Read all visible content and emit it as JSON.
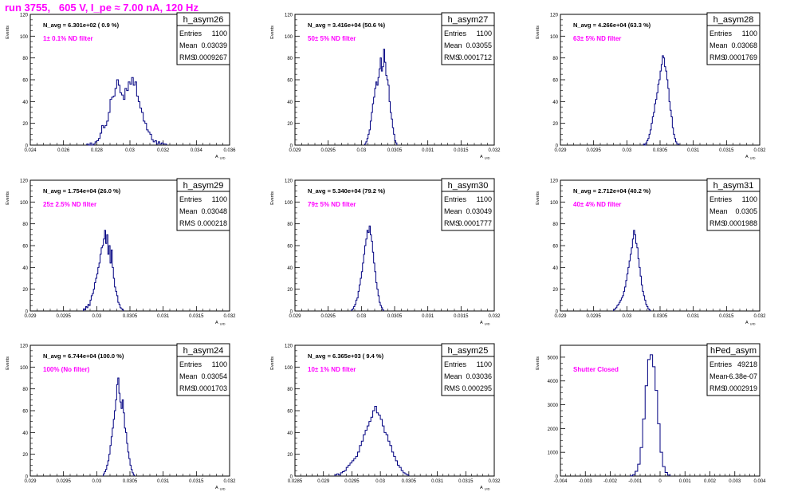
{
  "page": {
    "title": "run 3755,   605 V, I_pe ≈ 7.00 nA, 120 Hz"
  },
  "colors": {
    "title": "#ff00ff",
    "histogram": "#000080",
    "annotation": "#ff00ff",
    "frame": "#000000"
  },
  "chart_data": [
    {
      "type": "histogram",
      "name": "h_asym26",
      "stats": {
        "Entries": "1100",
        "Mean": "0.03039",
        "RMS": "0.0009267"
      },
      "navg_label": "N_avg = 6.301e+02 ( 0.9 %)",
      "filter_label": "1± 0.1% ND filter",
      "ylabel": "Events",
      "xlabel": "A_UID",
      "xlim": [
        0.024,
        0.036
      ],
      "ylim": [
        0,
        120
      ],
      "xticks": [
        0.024,
        0.026,
        0.028,
        0.03,
        0.032,
        0.034,
        0.036
      ],
      "xtick_labels": [
        "0.024",
        "0.026",
        "0.028",
        "0.03",
        "0.032",
        "0.034",
        "0.036"
      ],
      "yticks": [
        0,
        20,
        40,
        60,
        80,
        100,
        120
      ],
      "ytick_labels": [
        "0",
        "20",
        "40",
        "60",
        "80",
        "100",
        "120"
      ],
      "hist": {
        "edges_start": 0.0274,
        "bin_width": 0.0001,
        "counts": [
          1,
          0,
          2,
          0,
          1,
          3,
          4,
          6,
          11,
          18,
          16,
          18,
          22,
          30,
          42,
          44,
          45,
          52,
          60,
          55,
          48,
          46,
          42,
          52,
          50,
          58,
          56,
          62,
          55,
          58,
          45,
          40,
          34,
          30,
          22,
          20,
          14,
          12,
          10,
          5,
          3,
          4,
          1,
          3,
          1,
          2,
          1,
          1
        ]
      }
    },
    {
      "type": "histogram",
      "name": "h_asym27",
      "stats": {
        "Entries": "1100",
        "Mean": "0.03055",
        "RMS": "0.0001712"
      },
      "navg_label": "N_avg = 3.416e+04 (50.6 %)",
      "filter_label": "50± 5% ND filter",
      "ylabel": "Events",
      "xlabel": "A_UID",
      "xlim": [
        0.029,
        0.032
      ],
      "ylim": [
        0,
        120
      ],
      "xticks": [
        0.029,
        0.0295,
        0.03,
        0.0305,
        0.031,
        0.0315,
        0.032
      ],
      "xtick_labels": [
        "0.029",
        "0.0295",
        "0.03",
        "0.0305",
        "0.031",
        "0.0315",
        "0.032"
      ],
      "yticks": [
        0,
        20,
        40,
        60,
        80,
        100,
        120
      ],
      "ytick_labels": [
        "0",
        "20",
        "40",
        "60",
        "80",
        "100",
        "120"
      ],
      "hist": {
        "edges_start": 0.03005,
        "bin_width": 1.67e-05,
        "counts": [
          1,
          3,
          6,
          10,
          14,
          22,
          30,
          38,
          44,
          52,
          58,
          55,
          62,
          70,
          80,
          68,
          72,
          88,
          76,
          64,
          60,
          55,
          40,
          30,
          24,
          16,
          10,
          4,
          2
        ]
      }
    },
    {
      "type": "histogram",
      "name": "h_asym28",
      "stats": {
        "Entries": "1100",
        "Mean": "0.03068",
        "RMS": "0.0001769"
      },
      "navg_label": "N_avg = 4.266e+04 (63.3 %)",
      "filter_label": "63± 5% ND filter",
      "ylabel": "Events",
      "xlabel": "A_UID",
      "xlim": [
        0.029,
        0.032
      ],
      "ylim": [
        0,
        120
      ],
      "xticks": [
        0.029,
        0.0295,
        0.03,
        0.0305,
        0.031,
        0.0315,
        0.032
      ],
      "xtick_labels": [
        "0.029",
        "0.0295",
        "0.03",
        "0.0305",
        "0.031",
        "0.0315",
        "0.032"
      ],
      "yticks": [
        0,
        20,
        40,
        60,
        80,
        100,
        120
      ],
      "ytick_labels": [
        "0",
        "20",
        "40",
        "60",
        "80",
        "100",
        "120"
      ],
      "hist": {
        "edges_start": 0.03025,
        "bin_width": 1.67e-05,
        "counts": [
          1,
          0,
          2,
          4,
          6,
          10,
          14,
          20,
          26,
          30,
          38,
          42,
          48,
          56,
          60,
          68,
          74,
          82,
          80,
          72,
          68,
          60,
          52,
          40,
          32,
          26,
          16,
          10,
          6,
          3,
          1,
          1
        ]
      }
    },
    {
      "type": "histogram",
      "name": "h_asym29",
      "stats": {
        "Entries": "1100",
        "Mean": "0.03048",
        "RMS": "0.000218"
      },
      "navg_label": "N_avg = 1.754e+04 (26.0 %)",
      "filter_label": "25± 2.5% ND filter",
      "ylabel": "Events",
      "xlabel": "A_UID",
      "xlim": [
        0.029,
        0.032
      ],
      "ylim": [
        0,
        120
      ],
      "xticks": [
        0.029,
        0.0295,
        0.03,
        0.0305,
        0.031,
        0.0315,
        0.032
      ],
      "xtick_labels": [
        "0.029",
        "0.0295",
        "0.03",
        "0.0305",
        "0.031",
        "0.0315",
        "0.032"
      ],
      "yticks": [
        0,
        20,
        40,
        60,
        80,
        100,
        120
      ],
      "ytick_labels": [
        "0",
        "20",
        "40",
        "60",
        "80",
        "100",
        "120"
      ],
      "hist": {
        "edges_start": 0.0298,
        "bin_width": 1.67e-05,
        "counts": [
          2,
          1,
          4,
          3,
          6,
          5,
          10,
          14,
          16,
          20,
          26,
          30,
          34,
          40,
          44,
          52,
          58,
          60,
          66,
          74,
          62,
          70,
          52,
          60,
          44,
          56,
          40,
          30,
          22,
          18,
          14,
          8,
          6,
          3,
          2,
          1
        ]
      }
    },
    {
      "type": "histogram",
      "name": "h_asym30",
      "stats": {
        "Entries": "1100",
        "Mean": "0.03049",
        "RMS": "0.0001777"
      },
      "navg_label": "N_avg = 5.340e+04 (79.2 %)",
      "filter_label": "79± 5% ND filter",
      "ylabel": "Events",
      "xlabel": "A_UID",
      "xlim": [
        0.029,
        0.032
      ],
      "ylim": [
        0,
        120
      ],
      "xticks": [
        0.029,
        0.0295,
        0.03,
        0.0305,
        0.031,
        0.0315,
        0.032
      ],
      "xtick_labels": [
        "0.029",
        "0.0295",
        "0.03",
        "0.0305",
        "0.031",
        "0.0315",
        "0.032"
      ],
      "yticks": [
        0,
        20,
        40,
        60,
        80,
        100,
        120
      ],
      "ytick_labels": [
        "0",
        "20",
        "40",
        "60",
        "80",
        "100",
        "120"
      ],
      "hist": {
        "edges_start": 0.02985,
        "bin_width": 1.67e-05,
        "counts": [
          1,
          2,
          4,
          6,
          10,
          12,
          18,
          24,
          30,
          36,
          44,
          52,
          60,
          66,
          74,
          72,
          78,
          70,
          64,
          54,
          44,
          36,
          26,
          20,
          14,
          8,
          5,
          3,
          1
        ]
      }
    },
    {
      "type": "histogram",
      "name": "h_asym31",
      "stats": {
        "Entries": "1100",
        "Mean": "0.0305",
        "RMS": "0.0001988"
      },
      "navg_label": "N_avg = 2.712e+04 (40.2 %)",
      "filter_label": "40± 4% ND filter",
      "ylabel": "Events",
      "xlabel": "A_UID",
      "xlim": [
        0.029,
        0.032
      ],
      "ylim": [
        0,
        120
      ],
      "xticks": [
        0.029,
        0.0295,
        0.03,
        0.0305,
        0.031,
        0.0315,
        0.032
      ],
      "xtick_labels": [
        "0.029",
        "0.0295",
        "0.03",
        "0.0305",
        "0.031",
        "0.0315",
        "0.032"
      ],
      "yticks": [
        0,
        20,
        40,
        60,
        80,
        100,
        120
      ],
      "ytick_labels": [
        "0",
        "20",
        "40",
        "60",
        "80",
        "100",
        "120"
      ],
      "hist": {
        "edges_start": 0.0298,
        "bin_width": 1.67e-05,
        "counts": [
          1,
          2,
          3,
          5,
          6,
          8,
          10,
          12,
          14,
          18,
          22,
          28,
          34,
          40,
          46,
          52,
          58,
          66,
          74,
          70,
          62,
          58,
          48,
          40,
          32,
          24,
          18,
          14,
          10,
          6,
          4,
          2,
          1
        ]
      }
    },
    {
      "type": "histogram",
      "name": "h_asym24",
      "stats": {
        "Entries": "1100",
        "Mean": "0.03054",
        "RMS": "0.0001703"
      },
      "navg_label": "N_avg = 6.744e+04 (100.0 %)",
      "filter_label": "100% (No filter)",
      "ylabel": "Events",
      "xlabel": "A_UID",
      "xlim": [
        0.029,
        0.032
      ],
      "ylim": [
        0,
        120
      ],
      "xticks": [
        0.029,
        0.0295,
        0.03,
        0.0305,
        0.031,
        0.0315,
        0.032
      ],
      "xtick_labels": [
        "0.029",
        "0.0295",
        "0.03",
        "0.0305",
        "0.031",
        "0.0315",
        "0.032"
      ],
      "yticks": [
        0,
        20,
        40,
        60,
        80,
        100,
        120
      ],
      "ytick_labels": [
        "0",
        "20",
        "40",
        "60",
        "80",
        "100",
        "120"
      ],
      "hist": {
        "edges_start": 0.0301,
        "bin_width": 1.67e-05,
        "counts": [
          2,
          4,
          6,
          10,
          14,
          20,
          28,
          36,
          44,
          52,
          60,
          70,
          84,
          90,
          76,
          68,
          62,
          70,
          58,
          44,
          40,
          30,
          22,
          16,
          10,
          6,
          3,
          1
        ]
      }
    },
    {
      "type": "histogram",
      "name": "h_asym25",
      "stats": {
        "Entries": "1100",
        "Mean": "0.03036",
        "RMS": "0.000295"
      },
      "navg_label": "N_avg = 6.365e+03 ( 9.4 %)",
      "filter_label": "10± 1% ND filter",
      "ylabel": "Events",
      "xlabel": "A_UID",
      "xlim": [
        0.0285,
        0.032
      ],
      "ylim": [
        0,
        120
      ],
      "xticks": [
        0.0285,
        0.029,
        0.0295,
        0.03,
        0.0305,
        0.031,
        0.0315,
        0.032
      ],
      "xtick_labels": [
        "0.0285",
        "0.029",
        "0.0295",
        "0.03",
        "0.0305",
        "0.031",
        "0.0315",
        "0.032"
      ],
      "yticks": [
        0,
        20,
        40,
        60,
        80,
        100,
        120
      ],
      "ytick_labels": [
        "0",
        "20",
        "40",
        "60",
        "80",
        "100",
        "120"
      ],
      "hist": {
        "edges_start": 0.0292,
        "bin_width": 3.33e-05,
        "counts": [
          1,
          2,
          1,
          3,
          4,
          5,
          8,
          10,
          12,
          14,
          16,
          18,
          22,
          28,
          32,
          38,
          42,
          46,
          50,
          54,
          60,
          64,
          58,
          56,
          52,
          46,
          40,
          38,
          32,
          28,
          22,
          18,
          14,
          10,
          8,
          5,
          3,
          2,
          1
        ]
      }
    },
    {
      "type": "histogram",
      "name": "hPed_asym",
      "stats": {
        "Entries": "49218",
        "Mean": "-6.38e-07",
        "RMS": "0.0002919"
      },
      "navg_label": "",
      "filter_label": "Shutter Closed",
      "ylabel": "Events",
      "xlabel": "",
      "xlim": [
        -0.004,
        0.004
      ],
      "ylim": [
        0,
        5500
      ],
      "xticks": [
        -0.004,
        -0.003,
        -0.002,
        -0.001,
        0,
        0.001,
        0.002,
        0.003,
        0.004
      ],
      "xtick_labels": [
        "-0.004",
        "-0.003",
        "-0.002",
        "-0.001",
        "0",
        "0.001",
        "0.002",
        "0.003",
        "0.004"
      ],
      "yticks": [
        0,
        1000,
        2000,
        3000,
        4000,
        5000
      ],
      "ytick_labels": [
        "0",
        "1000",
        "2000",
        "3000",
        "4000",
        "5000"
      ],
      "hist": {
        "edges_start": -0.0012,
        "bin_width": 0.0001,
        "counts": [
          10,
          60,
          200,
          500,
          1200,
          2400,
          3800,
          4900,
          5100,
          4600,
          3600,
          2200,
          1000,
          400,
          150,
          40
        ]
      }
    }
  ]
}
